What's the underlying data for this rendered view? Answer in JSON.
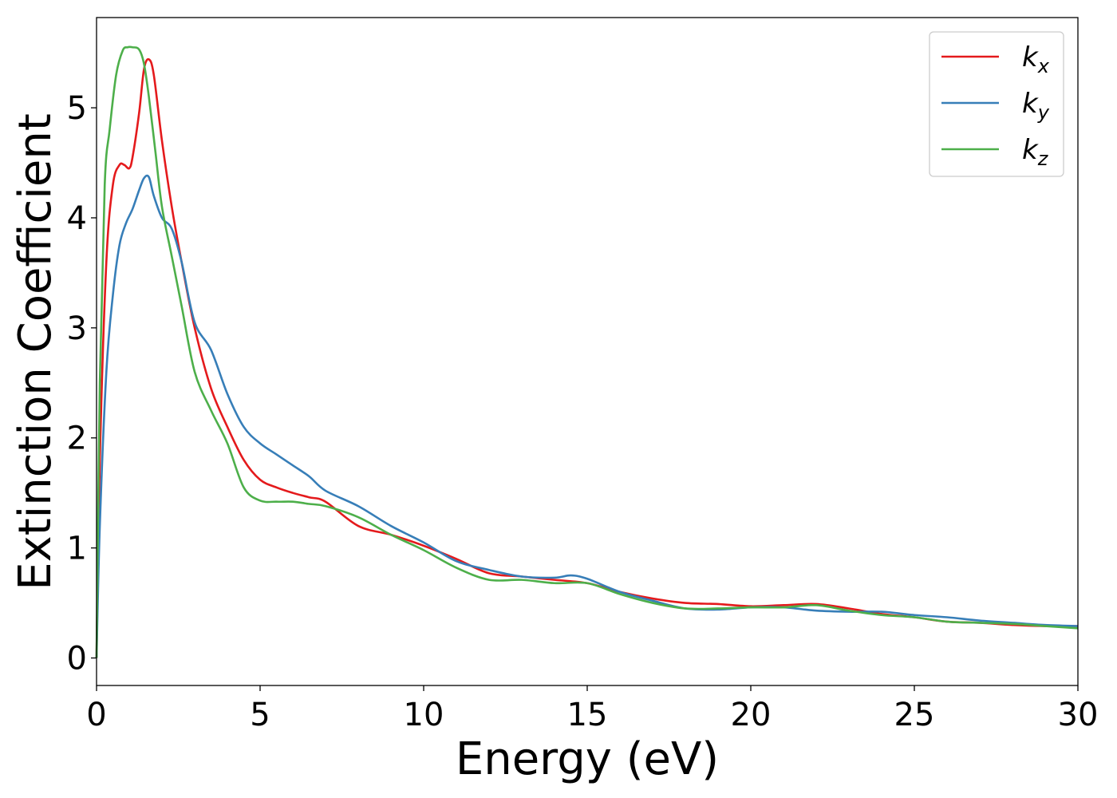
{
  "chart_data": {
    "type": "line",
    "title": "",
    "xlabel": "Energy (eV)",
    "ylabel": "Extinction Coefficient",
    "xlim": [
      0,
      30
    ],
    "ylim": [
      -0.25,
      5.82
    ],
    "xticks": [
      0,
      5,
      10,
      15,
      20,
      25,
      30
    ],
    "yticks": [
      0,
      1,
      2,
      3,
      4,
      5
    ],
    "grid": false,
    "legend_position": "top-right",
    "series": [
      {
        "name": "k_x",
        "legend_base": "k",
        "legend_sub": "x",
        "color": "#e41a1c",
        "x": [
          0,
          0.1,
          0.3,
          0.5,
          0.7,
          0.85,
          1.0,
          1.1,
          1.3,
          1.45,
          1.6,
          1.75,
          2.0,
          2.3,
          2.6,
          3.0,
          3.5,
          4.0,
          4.5,
          5.0,
          5.5,
          6.0,
          6.5,
          7.0,
          8.0,
          9.0,
          10.0,
          11.0,
          12.0,
          13.0,
          14.0,
          15.0,
          16.0,
          17.0,
          18.0,
          19.0,
          20.0,
          21.0,
          22.0,
          23.0,
          24.0,
          25.0,
          26.0,
          27.0,
          28.0,
          29.0,
          30.0
        ],
        "y": [
          0,
          1.8,
          3.6,
          4.3,
          4.48,
          4.48,
          4.45,
          4.55,
          4.95,
          5.35,
          5.44,
          5.3,
          4.7,
          4.1,
          3.6,
          3.0,
          2.45,
          2.1,
          1.8,
          1.62,
          1.55,
          1.5,
          1.46,
          1.42,
          1.2,
          1.12,
          1.02,
          0.9,
          0.77,
          0.74,
          0.71,
          0.68,
          0.6,
          0.54,
          0.5,
          0.49,
          0.47,
          0.48,
          0.49,
          0.45,
          0.4,
          0.37,
          0.33,
          0.32,
          0.3,
          0.29,
          0.29
        ]
      },
      {
        "name": "k_y",
        "legend_base": "k",
        "legend_sub": "y",
        "color": "#377eb8",
        "x": [
          0,
          0.1,
          0.3,
          0.5,
          0.7,
          0.9,
          1.1,
          1.3,
          1.45,
          1.6,
          1.75,
          2.0,
          2.3,
          2.6,
          3.0,
          3.5,
          4.0,
          4.5,
          5.0,
          5.5,
          6.0,
          6.5,
          7.0,
          8.0,
          9.0,
          10.0,
          11.0,
          12.0,
          13.0,
          14.0,
          14.5,
          15.0,
          16.0,
          17.0,
          18.0,
          19.0,
          20.0,
          21.0,
          22.0,
          23.0,
          24.0,
          25.0,
          26.0,
          27.0,
          28.0,
          29.0,
          30.0
        ],
        "y": [
          0,
          1.2,
          2.6,
          3.3,
          3.75,
          3.95,
          4.08,
          4.25,
          4.36,
          4.37,
          4.2,
          4.0,
          3.9,
          3.6,
          3.05,
          2.8,
          2.4,
          2.1,
          1.95,
          1.85,
          1.75,
          1.65,
          1.52,
          1.38,
          1.2,
          1.05,
          0.88,
          0.8,
          0.74,
          0.73,
          0.75,
          0.72,
          0.6,
          0.52,
          0.45,
          0.44,
          0.46,
          0.46,
          0.43,
          0.42,
          0.42,
          0.39,
          0.37,
          0.34,
          0.32,
          0.3,
          0.29
        ]
      },
      {
        "name": "k_z",
        "legend_base": "k",
        "legend_sub": "z",
        "color": "#4daf4a",
        "x": [
          0,
          0.1,
          0.25,
          0.4,
          0.6,
          0.8,
          0.95,
          1.1,
          1.3,
          1.45,
          1.6,
          1.8,
          2.0,
          2.3,
          2.6,
          3.0,
          3.5,
          4.0,
          4.5,
          5.0,
          5.5,
          6.0,
          6.5,
          7.0,
          8.0,
          9.0,
          10.0,
          11.0,
          12.0,
          13.0,
          14.0,
          15.0,
          16.0,
          17.0,
          18.0,
          19.0,
          20.0,
          21.0,
          22.0,
          23.0,
          24.0,
          25.0,
          26.0,
          27.0,
          28.0,
          29.0,
          30.0
        ],
        "y": [
          0,
          2.5,
          4.3,
          4.8,
          5.3,
          5.52,
          5.55,
          5.55,
          5.53,
          5.4,
          5.1,
          4.6,
          4.1,
          3.65,
          3.2,
          2.6,
          2.25,
          1.95,
          1.55,
          1.43,
          1.42,
          1.42,
          1.4,
          1.38,
          1.28,
          1.12,
          0.98,
          0.82,
          0.71,
          0.71,
          0.68,
          0.68,
          0.58,
          0.5,
          0.45,
          0.45,
          0.46,
          0.46,
          0.48,
          0.43,
          0.39,
          0.37,
          0.33,
          0.32,
          0.31,
          0.29,
          0.27
        ]
      }
    ]
  }
}
